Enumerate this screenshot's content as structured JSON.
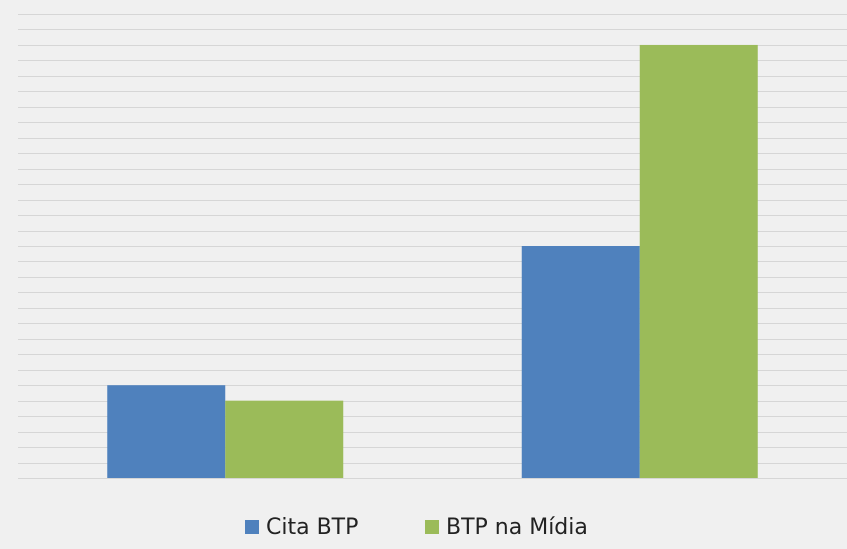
{
  "chart_data": {
    "type": "bar",
    "categories": [
      null,
      null
    ],
    "series": [
      {
        "name": "Cita BTP",
        "color": "#4f81bd",
        "values": [
          6,
          15
        ]
      },
      {
        "name": "BTP na Mídia",
        "color": "#9bbb59",
        "values": [
          5,
          28
        ]
      }
    ],
    "ylim": [
      0,
      30
    ],
    "yticks": [
      0,
      1,
      2,
      3,
      4,
      5,
      6,
      7,
      8,
      9,
      10,
      11,
      12,
      13,
      14,
      15,
      16,
      17,
      18,
      19,
      20,
      21,
      22,
      23,
      24,
      25,
      26,
      27,
      28,
      29,
      30
    ],
    "grid": true,
    "legend": "bottom"
  }
}
